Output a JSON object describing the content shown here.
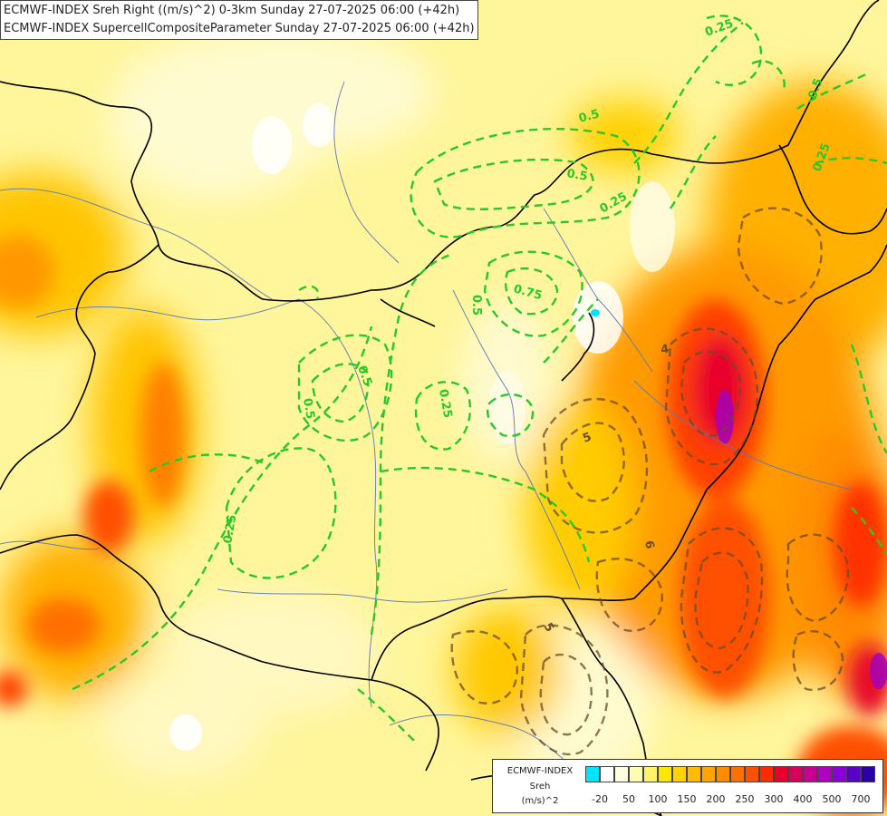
{
  "title": {
    "line1": "ECMWF-INDEX Sreh Right ((m/s)^2) 0-3km Sunday 27-07-2025 06:00 (+42h)",
    "line2": "ECMWF-INDEX SupercellCompositeParameter Sunday 27-07-2025 06:00 (+42h)"
  },
  "legend": {
    "source": "ECMWF-INDEX",
    "variable": "Sreh",
    "unit": "(m/s)^2",
    "tick_labels": [
      "-20",
      "50",
      "100",
      "150",
      "200",
      "250",
      "300",
      "400",
      "500",
      "700"
    ],
    "colors": [
      "#00e5ff",
      "#ffffff",
      "#fffde0",
      "#fffbb0",
      "#fff36a",
      "#ffe600",
      "#ffd200",
      "#ffbb00",
      "#ffa400",
      "#ff8c00",
      "#ff7000",
      "#ff5000",
      "#ff2a00",
      "#e8002a",
      "#d8005a",
      "#c80090",
      "#b000c0",
      "#8a00d8",
      "#5a00c8",
      "#2a00a8"
    ]
  },
  "contour_labels": {
    "green": [
      "0.25",
      "0.5",
      "0.5",
      "0.25",
      "0.75",
      "0.5",
      "0.5",
      "0.5",
      "0.25",
      "0.25",
      "0.5",
      "0.25"
    ],
    "brown": [
      "5",
      "6",
      "5",
      "4"
    ]
  },
  "colors": {
    "green_contour": "#28c828",
    "brown_contour": "#6b4a28",
    "border": "#000000",
    "river": "#5a78b4",
    "background": "#fff59a"
  }
}
